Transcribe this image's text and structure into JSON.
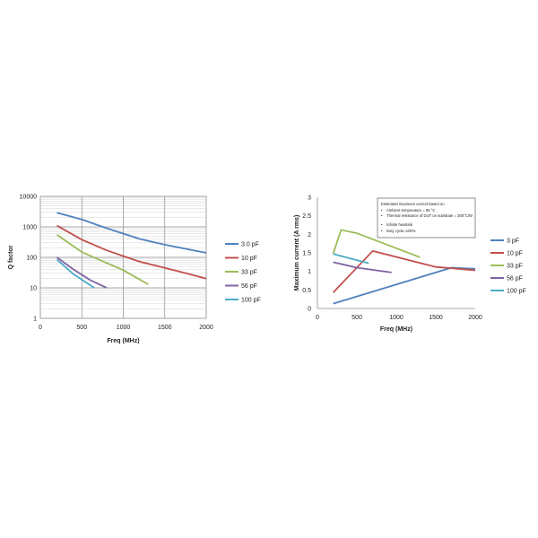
{
  "chart_data": [
    {
      "type": "line",
      "title": "",
      "xlabel": "Freq (MHz)",
      "ylabel": "Q factor",
      "xlim": [
        0,
        2000
      ],
      "ylim": [
        1,
        10000
      ],
      "yscale": "log",
      "x_ticks": [
        "0",
        "500",
        "1000",
        "1500",
        "2000"
      ],
      "y_ticks": [
        "1",
        "10",
        "100",
        "1000",
        "10000"
      ],
      "grid": true,
      "legend_position": "right",
      "series": [
        {
          "name": "3.0 pF",
          "color": "#4f81bd",
          "x": [
            200,
            500,
            800,
            1000,
            1200,
            1500,
            1800,
            2000
          ],
          "y": [
            2900,
            1750,
            900,
            600,
            400,
            260,
            180,
            140
          ]
        },
        {
          "name": "10 pF",
          "color": "#c0504d",
          "x": [
            200,
            500,
            800,
            1000,
            1200,
            1500,
            1800,
            2000
          ],
          "y": [
            1100,
            380,
            170,
            110,
            72,
            45,
            28,
            20
          ]
        },
        {
          "name": "33 pF",
          "color": "#9bbb59",
          "x": [
            200,
            500,
            800,
            1000,
            1300
          ],
          "y": [
            550,
            150,
            65,
            38,
            13
          ]
        },
        {
          "name": "56 pF",
          "color": "#8064a2",
          "x": [
            200,
            400,
            600,
            800
          ],
          "y": [
            100,
            40,
            18,
            10
          ]
        },
        {
          "name": "100 pF",
          "color": "#4bacc6",
          "x": [
            200,
            400,
            650
          ],
          "y": [
            85,
            28,
            10
          ]
        }
      ]
    },
    {
      "type": "line",
      "title": "",
      "xlabel": "Freq (MHz)",
      "ylabel": "Maximum current (A rms)",
      "xlim": [
        0,
        2000
      ],
      "ylim": [
        0,
        3
      ],
      "x_ticks": [
        "0",
        "500",
        "1000",
        "1500",
        "2000"
      ],
      "y_ticks": [
        "0",
        "0.5",
        "1",
        "1.5",
        "2",
        "2.5",
        "3"
      ],
      "grid": false,
      "legend_position": "right",
      "annotation": {
        "title": "Estimated maximum current based on",
        "items": [
          "Ambient temperature = 85 °C",
          "Thermal resistance of DUT on substrate = 300°C/W",
          "Infinite heatsink",
          "Duty cycle=100%"
        ]
      },
      "series": [
        {
          "name": "3 pF",
          "color": "#4f81bd",
          "x": [
            200,
            1700,
            2000
          ],
          "y": [
            0.13,
            1.1,
            1.07
          ]
        },
        {
          "name": "10 pF",
          "color": "#c0504d",
          "x": [
            200,
            700,
            1500,
            2000
          ],
          "y": [
            0.43,
            1.55,
            1.12,
            1.03
          ]
        },
        {
          "name": "33 pF",
          "color": "#9bbb59",
          "x": [
            200,
            300,
            500,
            1300
          ],
          "y": [
            1.48,
            2.12,
            2.03,
            1.38
          ]
        },
        {
          "name": "56 pF",
          "color": "#8064a2",
          "x": [
            200,
            500,
            940
          ],
          "y": [
            1.25,
            1.1,
            0.97
          ]
        },
        {
          "name": "100 pF",
          "color": "#4bacc6",
          "x": [
            200,
            650
          ],
          "y": [
            1.47,
            1.22
          ]
        }
      ]
    }
  ]
}
